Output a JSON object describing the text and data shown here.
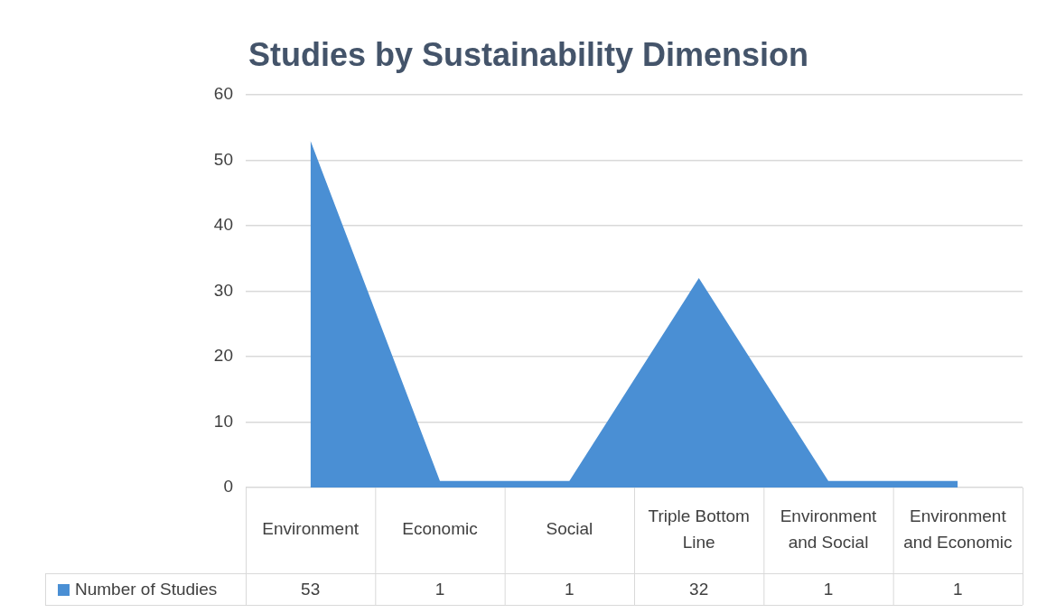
{
  "chart_data": {
    "type": "area",
    "title": "Studies by Sustainability Dimension",
    "categories": [
      "Environment",
      "Economic",
      "Social",
      "Triple Bottom Line",
      "Environment and Social",
      "Environment and Economic"
    ],
    "series": [
      {
        "name": "Number of Studies",
        "color": "#4a8fd4",
        "values": [
          53,
          1,
          1,
          32,
          1,
          1
        ]
      }
    ],
    "ylim": [
      0,
      60
    ],
    "yticks": [
      0,
      10,
      20,
      30,
      40,
      50,
      60
    ],
    "grid": "y",
    "legend": "bottom",
    "data_labels": true
  }
}
